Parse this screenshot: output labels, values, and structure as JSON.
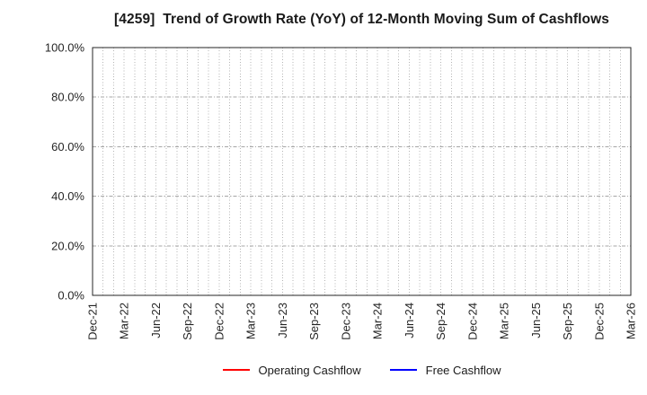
{
  "window": {
    "background": "#ffffff"
  },
  "chart_data": {
    "type": "line",
    "title": "[4259]  Trend of Growth Rate (YoY) of 12-Month Moving Sum of Cashflows",
    "x_tick_labels": [
      "Dec-21",
      "Mar-22",
      "Jun-22",
      "Sep-22",
      "Dec-22",
      "Mar-23",
      "Jun-23",
      "Sep-23",
      "Dec-23",
      "Mar-24",
      "Jun-24",
      "Sep-24",
      "Dec-24",
      "Mar-25",
      "Jun-25",
      "Sep-25",
      "Dec-25",
      "Mar-26"
    ],
    "y_tick_labels": [
      "0.0%",
      "20.0%",
      "40.0%",
      "60.0%",
      "80.0%",
      "100.0%"
    ],
    "ylim": [
      0,
      100
    ],
    "y_unit": "%",
    "grid": true,
    "minor_vgrid_per_interval": 3,
    "legend_position": "bottom",
    "series": [
      {
        "name": "Operating Cashflow",
        "color": "#ff0000",
        "values": []
      },
      {
        "name": "Free Cashflow",
        "color": "#0000ff",
        "values": []
      }
    ],
    "colors": {
      "vertical_grid": "#b5b5b5",
      "horizontal_grid": "#a6a6a6",
      "axis_border": "#262626",
      "tick_label": "#262626",
      "title": "#1a1a1a"
    }
  }
}
